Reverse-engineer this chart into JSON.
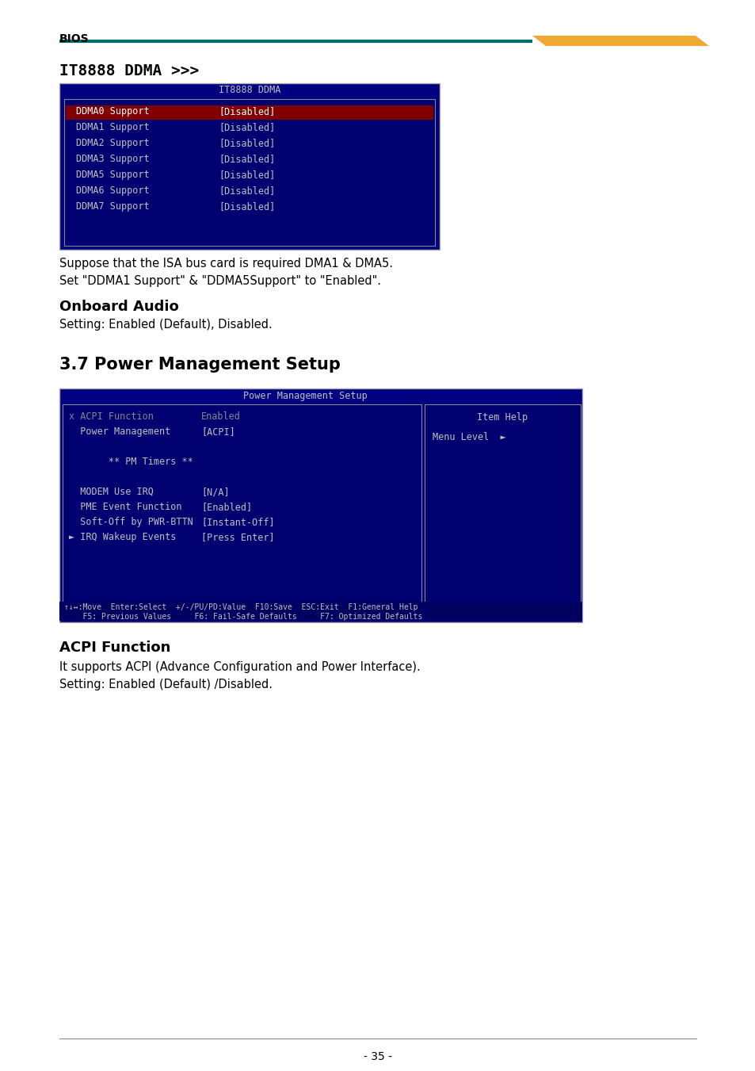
{
  "page_label": "BIOS",
  "page_number": "- 35 -",
  "teal_line_color": "#007070",
  "gold_line_color": "#F0A830",
  "section1_title": "IT8888 DDMA >>>",
  "bios1_title": "IT8888 DDMA",
  "bios1_bg": "#000080",
  "bios1_rows": [
    {
      "label": "DDMA0 Support",
      "value": "[Disabled]",
      "highlight": true
    },
    {
      "label": "DDMA1 Support",
      "value": "[Disabled]",
      "highlight": false
    },
    {
      "label": "DDMA2 Support",
      "value": "[Disabled]",
      "highlight": false
    },
    {
      "label": "DDMA3 Support",
      "value": "[Disabled]",
      "highlight": false
    },
    {
      "label": "DDMA5 Support",
      "value": "[Disabled]",
      "highlight": false
    },
    {
      "label": "DDMA6 Support",
      "value": "[Disabled]",
      "highlight": false
    },
    {
      "label": "DDMA7 Support",
      "value": "[Disabled]",
      "highlight": false
    }
  ],
  "bios1_highlight_bg": "#800000",
  "bios1_text_color": "#C0C0C0",
  "bios1_highlight_text": "#FFFFFF",
  "para1_lines": [
    "Suppose that the ISA bus card is required DMA1 & DMA5.",
    "Set \"DDMA1 Support\" & \"DDMA5Support\" to \"Enabled\"."
  ],
  "section2_title": "Onboard Audio",
  "para2": "Setting: Enabled (Default), Disabled.",
  "section3_title": "3.7 Power Management Setup",
  "bios2_title": "Power Management Setup",
  "bios2_left_rows": [
    {
      "label": "x ACPI Function",
      "value": "Enabled",
      "grayed": true
    },
    {
      "label": "  Power Management",
      "value": "[ACPI]",
      "grayed": false
    },
    {
      "label": "",
      "value": "",
      "grayed": false
    },
    {
      "label": "       ** PM Timers **",
      "value": "",
      "grayed": false
    },
    {
      "label": "",
      "value": "",
      "grayed": false
    },
    {
      "label": "  MODEM Use IRQ",
      "value": "[N/A]",
      "grayed": false
    },
    {
      "label": "  PME Event Function",
      "value": "[Enabled]",
      "grayed": false
    },
    {
      "label": "  Soft-Off by PWR-BTTN",
      "value": "[Instant-Off]",
      "grayed": false
    },
    {
      "label": "► IRQ Wakeup Events",
      "value": "[Press Enter]",
      "grayed": false
    }
  ],
  "bios2_item_help": "Item Help",
  "bios2_menu_level": "Menu Level",
  "bios2_bottom_line1": "↑↓↔:Move  Enter:Select  +/-/PU/PD:Value  F10:Save  ESC:Exit  F1:General Help",
  "bios2_bottom_line2": "    F5: Previous Values     F6: Fail-Safe Defaults     F7: Optimized Defaults",
  "section4_title": "ACPI Function",
  "para3_lines": [
    "It supports ACPI (Advance Configuration and Power Interface).",
    "Setting: Enabled (Default) /Disabled."
  ],
  "font_color": "#000000",
  "bg_color": "#FFFFFF"
}
